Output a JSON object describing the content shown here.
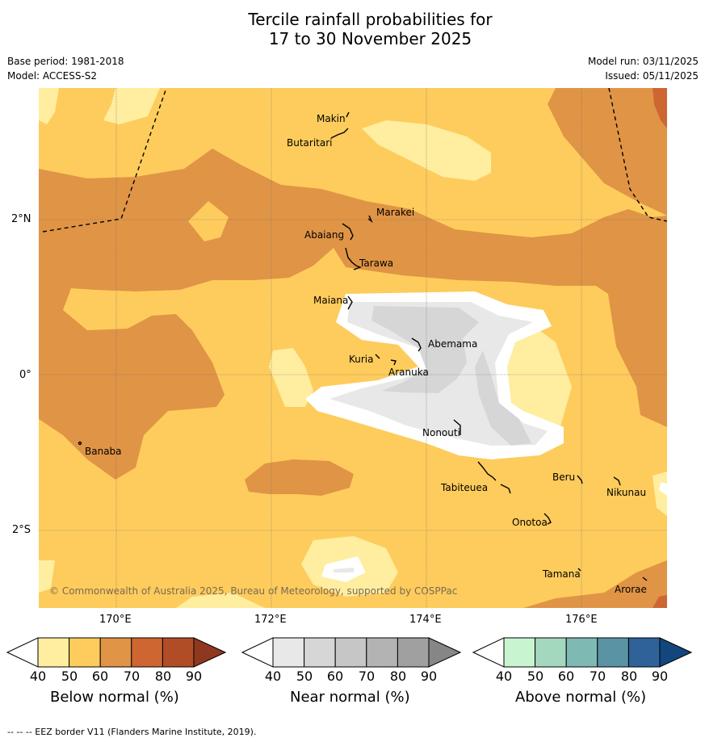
{
  "title_line1": "Tercile rainfall probabilities for",
  "title_line2": "17 to 30 November 2025",
  "base_period": "Base period: 1981-2018",
  "model": "Model: ACCESS-S2",
  "model_run": "Model run: 03/11/2025",
  "issued": "Issued: 05/11/2025",
  "lat_labels": [
    "2°N",
    "0°",
    "2°S"
  ],
  "lon_labels": [
    "170°E",
    "172°E",
    "174°E",
    "176°E"
  ],
  "places": {
    "makin": "Makin",
    "butaritari": "Butaritari",
    "marakei": "Marakei",
    "abaiang": "Abaiang",
    "tarawa": "Tarawa",
    "maiana": "Maiana",
    "abemama": "Abemama",
    "kuria": "Kuria",
    "aranuka": "Aranuka",
    "banaba": "Banaba",
    "nonouti": "Nonouti",
    "tabiteuea": "Tabiteuea",
    "beru": "Beru",
    "nikunau": "Nikunau",
    "onotoa": "Onotoa",
    "tamana": "Tamana",
    "arorae": "Arorae"
  },
  "copyright": "© Commonwealth of Australia 2025, Bureau of Meteorology, supported by COSPPac",
  "colorbars": [
    {
      "label": "Below normal (%)",
      "colors": [
        "#ffeda0",
        "#fecc5c",
        "#e09445",
        "#ce6632",
        "#b04d26",
        "#8f3820"
      ]
    },
    {
      "label": "Near normal (%)",
      "colors": [
        "#e8e8e8",
        "#d6d6d6",
        "#c6c6c6",
        "#b3b3b3",
        "#a0a0a0",
        "#868686"
      ]
    },
    {
      "label": "Above normal (%)",
      "colors": [
        "#c8f5cf",
        "#a4d8be",
        "#7fb9b3",
        "#5a93a3",
        "#2e6299",
        "#14467e"
      ]
    }
  ],
  "ticks": [
    "40",
    "50",
    "60",
    "70",
    "80",
    "90"
  ],
  "footer": "--  --  -- EEZ border V11 (Flanders Marine Institute, 2019)."
}
